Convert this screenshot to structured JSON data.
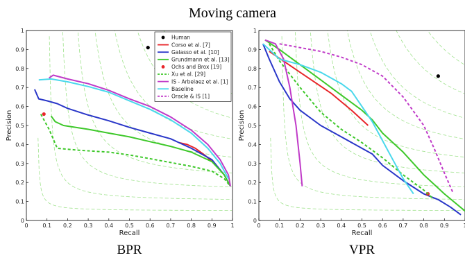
{
  "figure_title": "Moving camera",
  "chart_data": [
    {
      "type": "line",
      "caption": "BPR",
      "xlabel": "Recall",
      "ylabel": "Precision",
      "xlim": [
        0,
        1
      ],
      "ylim": [
        0,
        1
      ],
      "xticks": [
        "0",
        "0.1",
        "0.2",
        "0.3",
        "0.4",
        "0.5",
        "0.6",
        "0.7",
        "0.8",
        "0.9",
        "1"
      ],
      "yticks": [
        "0",
        "0.1",
        "0.2",
        "0.3",
        "0.4",
        "0.5",
        "0.6",
        "0.7",
        "0.8",
        "0.9",
        "1"
      ],
      "grid": false,
      "legend_position": "top-right",
      "series": [
        {
          "name": "Human",
          "color": "#000000",
          "style": "marker",
          "points": [
            [
              0.59,
              0.91
            ]
          ]
        },
        {
          "name": "Corso et al. [7]",
          "color": "#e8262a",
          "style": "solid",
          "points": [
            [
              0.74,
              0.41
            ],
            [
              0.78,
              0.4
            ],
            [
              0.82,
              0.38
            ],
            [
              0.87,
              0.34
            ],
            [
              0.9,
              0.31
            ]
          ]
        },
        {
          "name": "Galasso et al. [10]",
          "color": "#2936c8",
          "style": "solid",
          "points": [
            [
              0.04,
              0.69
            ],
            [
              0.06,
              0.64
            ],
            [
              0.1,
              0.63
            ],
            [
              0.15,
              0.615
            ],
            [
              0.2,
              0.59
            ],
            [
              0.3,
              0.555
            ],
            [
              0.4,
              0.525
            ],
            [
              0.5,
              0.49
            ],
            [
              0.6,
              0.46
            ],
            [
              0.7,
              0.43
            ],
            [
              0.8,
              0.38
            ],
            [
              0.9,
              0.32
            ],
            [
              0.96,
              0.24
            ],
            [
              0.99,
              0.18
            ]
          ]
        },
        {
          "name": "Grundmann et al. [13]",
          "color": "#3ec82a",
          "style": "solid",
          "points": [
            [
              0.12,
              0.55
            ],
            [
              0.14,
              0.52
            ],
            [
              0.18,
              0.5
            ],
            [
              0.3,
              0.48
            ],
            [
              0.4,
              0.46
            ],
            [
              0.5,
              0.44
            ],
            [
              0.6,
              0.415
            ],
            [
              0.7,
              0.39
            ],
            [
              0.8,
              0.36
            ],
            [
              0.9,
              0.31
            ],
            [
              0.96,
              0.24
            ],
            [
              0.99,
              0.18
            ]
          ]
        },
        {
          "name": "Ochs and Brox [19]",
          "color": "#e8262a",
          "style": "marker",
          "points": [
            [
              0.085,
              0.56
            ]
          ]
        },
        {
          "name": "Xu et al. [29]",
          "color": "#3ec82a",
          "style": "dashed",
          "points": [
            [
              0.07,
              0.56
            ],
            [
              0.11,
              0.48
            ],
            [
              0.15,
              0.38
            ],
            [
              0.25,
              0.37
            ],
            [
              0.4,
              0.36
            ],
            [
              0.5,
              0.345
            ],
            [
              0.6,
              0.325
            ],
            [
              0.7,
              0.305
            ],
            [
              0.8,
              0.285
            ],
            [
              0.9,
              0.26
            ],
            [
              0.96,
              0.22
            ],
            [
              0.99,
              0.18
            ]
          ]
        },
        {
          "name": "IS - Arbelaez et al. [1]",
          "color": "#c03ac8",
          "style": "solid",
          "points": [
            [
              0.11,
              0.75
            ],
            [
              0.13,
              0.765
            ],
            [
              0.2,
              0.745
            ],
            [
              0.3,
              0.72
            ],
            [
              0.4,
              0.685
            ],
            [
              0.5,
              0.64
            ],
            [
              0.6,
              0.6
            ],
            [
              0.7,
              0.545
            ],
            [
              0.8,
              0.475
            ],
            [
              0.88,
              0.4
            ],
            [
              0.94,
              0.32
            ],
            [
              0.98,
              0.24
            ],
            [
              0.99,
              0.18
            ]
          ]
        },
        {
          "name": "Baseline",
          "color": "#4ad8ec",
          "style": "solid",
          "points": [
            [
              0.06,
              0.74
            ],
            [
              0.12,
              0.745
            ],
            [
              0.2,
              0.73
            ],
            [
              0.3,
              0.705
            ],
            [
              0.4,
              0.675
            ],
            [
              0.5,
              0.63
            ],
            [
              0.6,
              0.585
            ],
            [
              0.7,
              0.53
            ],
            [
              0.8,
              0.46
            ],
            [
              0.88,
              0.38
            ],
            [
              0.94,
              0.3
            ],
            [
              0.98,
              0.22
            ]
          ]
        },
        {
          "name": "Oracle & IS [1]",
          "color": "#c03ac8",
          "style": "dashed",
          "points": []
        }
      ]
    },
    {
      "type": "line",
      "caption": "VPR",
      "xlabel": "Recall",
      "ylabel": "Precision",
      "xlim": [
        0,
        1
      ],
      "ylim": [
        0,
        1
      ],
      "xticks": [
        "0",
        "0.1",
        "0.2",
        "0.3",
        "0.4",
        "0.5",
        "0.6",
        "0.7",
        "0.8",
        "0.9",
        "1"
      ],
      "yticks": [
        "0",
        "0.1",
        "0.2",
        "0.3",
        "0.4",
        "0.5",
        "0.6",
        "0.7",
        "0.8",
        "0.9",
        "1"
      ],
      "grid": false,
      "legend_position": "none",
      "series": [
        {
          "name": "Human",
          "color": "#000000",
          "style": "marker",
          "points": [
            [
              0.87,
              0.76
            ]
          ]
        },
        {
          "name": "Corso et al. [7]",
          "color": "#e8262a",
          "style": "solid",
          "points": [
            [
              0.05,
              0.89
            ],
            [
              0.2,
              0.78
            ],
            [
              0.35,
              0.67
            ],
            [
              0.45,
              0.58
            ],
            [
              0.53,
              0.5
            ]
          ]
        },
        {
          "name": "Galasso et al. [10]",
          "color": "#2936c8",
          "style": "solid",
          "points": [
            [
              0.02,
              0.93
            ],
            [
              0.05,
              0.85
            ],
            [
              0.1,
              0.73
            ],
            [
              0.15,
              0.64
            ],
            [
              0.2,
              0.58
            ],
            [
              0.3,
              0.5
            ],
            [
              0.4,
              0.44
            ],
            [
              0.5,
              0.38
            ],
            [
              0.55,
              0.35
            ],
            [
              0.6,
              0.29
            ],
            [
              0.7,
              0.21
            ],
            [
              0.8,
              0.14
            ],
            [
              0.87,
              0.11
            ],
            [
              0.93,
              0.07
            ],
            [
              0.98,
              0.03
            ]
          ]
        },
        {
          "name": "Grundmann et al. [13]",
          "color": "#3ec82a",
          "style": "solid",
          "points": [
            [
              0.03,
              0.95
            ],
            [
              0.1,
              0.9
            ],
            [
              0.2,
              0.82
            ],
            [
              0.3,
              0.74
            ],
            [
              0.4,
              0.66
            ],
            [
              0.5,
              0.58
            ],
            [
              0.55,
              0.53
            ],
            [
              0.6,
              0.46
            ],
            [
              0.7,
              0.36
            ],
            [
              0.8,
              0.24
            ],
            [
              0.9,
              0.14
            ],
            [
              1.0,
              0.05
            ]
          ]
        },
        {
          "name": "Ochs and Brox [19]",
          "color": "#e8262a",
          "style": "marker",
          "points": [
            [
              0.82,
              0.14
            ]
          ]
        },
        {
          "name": "Xu et al. [29]",
          "color": "#3ec82a",
          "style": "dashed",
          "points": [
            [
              0.05,
              0.93
            ],
            [
              0.1,
              0.84
            ],
            [
              0.2,
              0.7
            ],
            [
              0.3,
              0.57
            ],
            [
              0.4,
              0.48
            ],
            [
              0.5,
              0.41
            ],
            [
              0.6,
              0.33
            ],
            [
              0.7,
              0.24
            ],
            [
              0.8,
              0.16
            ],
            [
              0.84,
              0.12
            ]
          ]
        },
        {
          "name": "IS - Arbelaez et al. [1]",
          "color": "#c03ac8",
          "style": "solid",
          "points": [
            [
              0.03,
              0.95
            ],
            [
              0.08,
              0.93
            ],
            [
              0.12,
              0.85
            ],
            [
              0.15,
              0.7
            ],
            [
              0.18,
              0.5
            ],
            [
              0.2,
              0.3
            ],
            [
              0.21,
              0.18
            ]
          ]
        },
        {
          "name": "Baseline",
          "color": "#4ad8ec",
          "style": "solid",
          "points": [
            [
              0.02,
              0.93
            ],
            [
              0.1,
              0.85
            ],
            [
              0.2,
              0.82
            ],
            [
              0.3,
              0.78
            ],
            [
              0.4,
              0.72
            ],
            [
              0.45,
              0.68
            ],
            [
              0.5,
              0.6
            ],
            [
              0.55,
              0.52
            ],
            [
              0.6,
              0.42
            ],
            [
              0.65,
              0.32
            ],
            [
              0.7,
              0.22
            ],
            [
              0.75,
              0.14
            ]
          ]
        },
        {
          "name": "Oracle & IS [1]",
          "color": "#c03ac8",
          "style": "dashed",
          "points": [
            [
              0.1,
              0.93
            ],
            [
              0.2,
              0.91
            ],
            [
              0.3,
              0.89
            ],
            [
              0.4,
              0.86
            ],
            [
              0.5,
              0.82
            ],
            [
              0.6,
              0.76
            ],
            [
              0.7,
              0.65
            ],
            [
              0.8,
              0.5
            ],
            [
              0.85,
              0.38
            ],
            [
              0.9,
              0.25
            ],
            [
              0.94,
              0.15
            ]
          ]
        }
      ]
    }
  ]
}
